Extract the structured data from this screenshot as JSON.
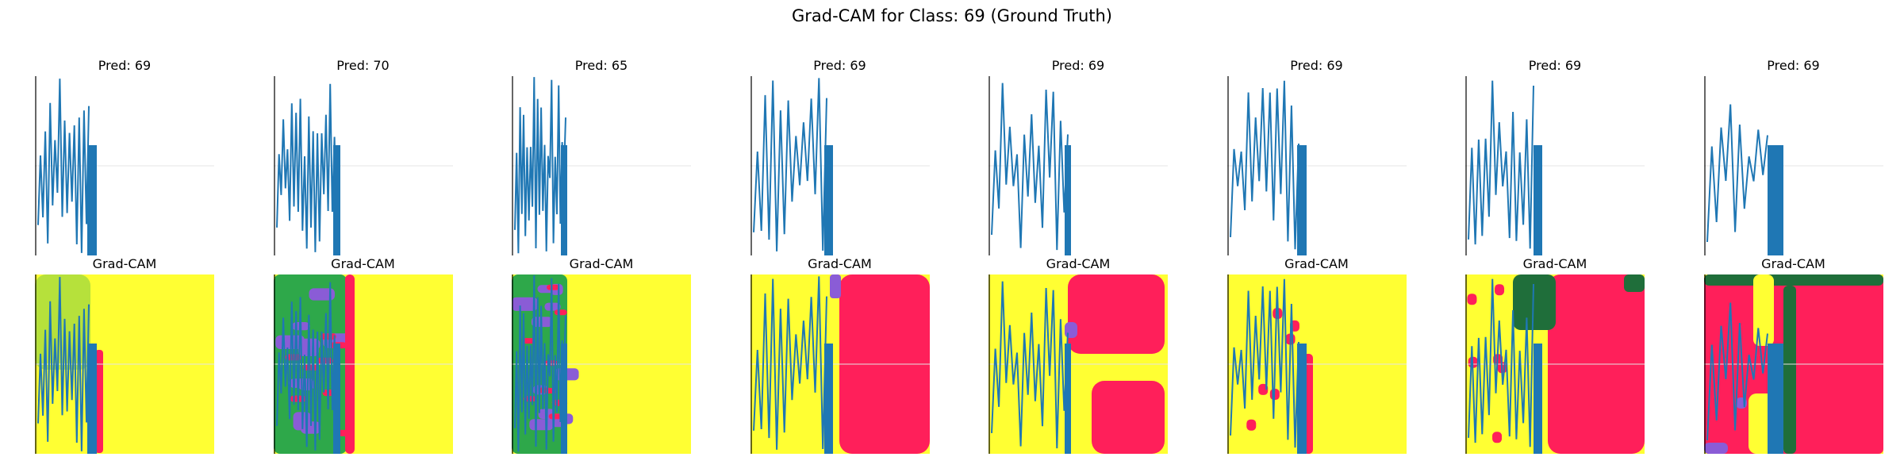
{
  "title": "Grad-CAM for Class: 69 (Ground Truth)",
  "chart_data": {
    "type": "figure-grid",
    "rows": 2,
    "cols": 8,
    "title": "Grad-CAM for Class: 69 (Ground Truth)",
    "axes_visible": false,
    "colors": {
      "line": "#1f77b4",
      "cam_low": "#ffff33",
      "cam_high": "#ff1f5a",
      "cam_mid_green": "#2ea84a",
      "cam_mid_violet": "#8a5cd6",
      "cam_dark": "#1f6e3a",
      "guide": "#e4e4e4"
    },
    "panels": [
      {
        "top_title": "Pred: 69",
        "bottom_title": "Grad-CAM",
        "predicted_class": 69
      },
      {
        "top_title": "Pred: 70",
        "bottom_title": "Grad-CAM",
        "predicted_class": 70
      },
      {
        "top_title": "Pred: 65",
        "bottom_title": "Grad-CAM",
        "predicted_class": 65
      },
      {
        "top_title": "Pred: 69",
        "bottom_title": "Grad-CAM",
        "predicted_class": 69
      },
      {
        "top_title": "Pred: 69",
        "bottom_title": "Grad-CAM",
        "predicted_class": 69
      },
      {
        "top_title": "Pred: 69",
        "bottom_title": "Grad-CAM",
        "predicted_class": 69
      },
      {
        "top_title": "Pred: 69",
        "bottom_title": "Grad-CAM",
        "predicted_class": 69
      },
      {
        "top_title": "Pred: 69",
        "bottom_title": "Grad-CAM",
        "predicted_class": 69
      }
    ]
  }
}
